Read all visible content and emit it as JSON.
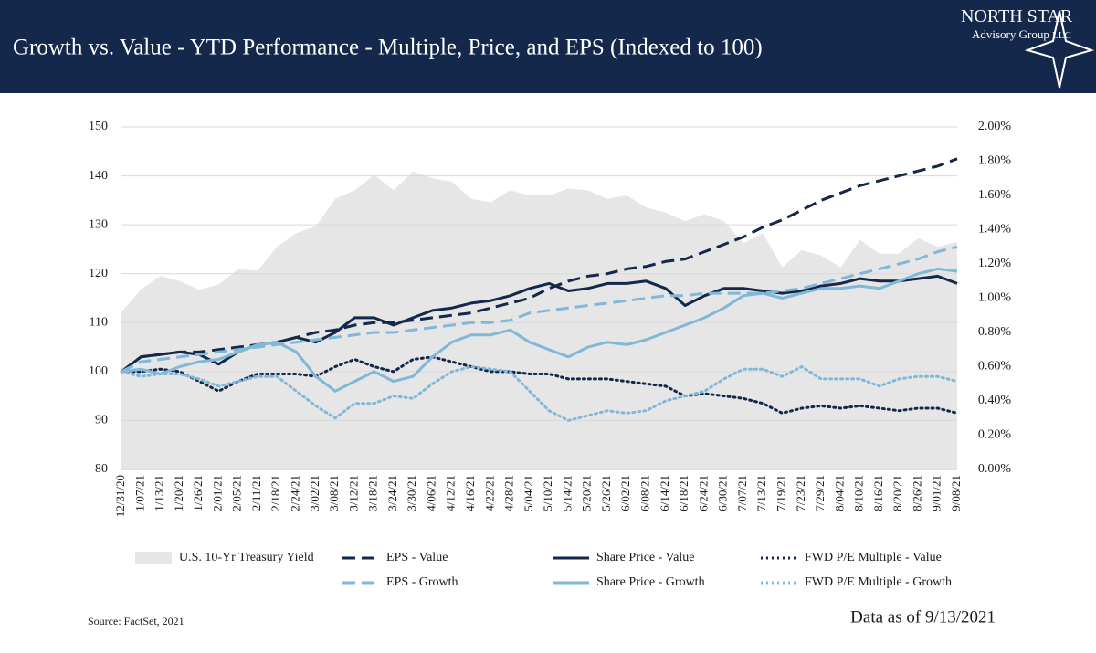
{
  "logo": {
    "name": "NORTH STAR",
    "line2": "Advisory Group",
    "line3": "LLC"
  },
  "chart_data": {
    "type": "line",
    "title": "Growth vs. Value - YTD Performance - Multiple, Price, and EPS (Indexed to 100)",
    "source": "Source: FactSet, 2021",
    "note": "Data as of 9/13/2021",
    "categories": [
      "12/31/20",
      "1/07/21",
      "1/13/21",
      "1/20/21",
      "1/26/21",
      "2/01/21",
      "2/05/21",
      "2/11/21",
      "2/18/21",
      "2/24/21",
      "3/02/21",
      "3/08/21",
      "3/12/21",
      "3/18/21",
      "3/24/21",
      "3/30/21",
      "4/06/21",
      "4/12/21",
      "4/16/21",
      "4/22/21",
      "4/28/21",
      "5/04/21",
      "5/10/21",
      "5/14/21",
      "5/20/21",
      "5/26/21",
      "6/02/21",
      "6/08/21",
      "6/14/21",
      "6/18/21",
      "6/24/21",
      "6/30/21",
      "7/07/21",
      "7/13/21",
      "7/19/21",
      "7/23/21",
      "7/29/21",
      "8/04/21",
      "8/10/21",
      "8/16/21",
      "8/20/21",
      "8/26/21",
      "9/01/21",
      "9/08/21"
    ],
    "ylim": [
      80,
      150
    ],
    "yticks": [
      80,
      90,
      100,
      110,
      120,
      130,
      140,
      150
    ],
    "y2lim": [
      0,
      2
    ],
    "y2ticks": [
      {
        "value": 0,
        "label": "0.00%"
      },
      {
        "value": 0.2,
        "label": "0.20%"
      },
      {
        "value": 0.4,
        "label": "0.40%"
      },
      {
        "value": 0.6,
        "label": "0.60%"
      },
      {
        "value": 0.8,
        "label": "0.80%"
      },
      {
        "value": 1,
        "label": "1.00%"
      },
      {
        "value": 1.2,
        "label": "1.20%"
      },
      {
        "value": 1.4,
        "label": "1.40%"
      },
      {
        "value": 1.6,
        "label": "1.60%"
      },
      {
        "value": 1.8,
        "label": "1.80%"
      },
      {
        "value": 2,
        "label": "2.00%"
      }
    ],
    "grid": true,
    "series": [
      {
        "name": "U.S. 10-Yr Treasury Yield",
        "color": "#e6e6e6",
        "style": "area",
        "axis": "y2",
        "values": [
          0.92,
          1.05,
          1.13,
          1.1,
          1.05,
          1.08,
          1.17,
          1.16,
          1.3,
          1.38,
          1.42,
          1.58,
          1.63,
          1.72,
          1.63,
          1.74,
          1.7,
          1.68,
          1.58,
          1.56,
          1.63,
          1.6,
          1.6,
          1.64,
          1.63,
          1.58,
          1.6,
          1.53,
          1.5,
          1.45,
          1.49,
          1.45,
          1.32,
          1.38,
          1.18,
          1.28,
          1.25,
          1.18,
          1.34,
          1.26,
          1.26,
          1.35,
          1.3,
          1.33
        ]
      },
      {
        "name": "EPS - Value",
        "color": "#14284b",
        "style": "dashed",
        "values": [
          100,
          103,
          103.5,
          104,
          104,
          104.5,
          105,
          105.5,
          106,
          107,
          108,
          108.5,
          109.5,
          110,
          110,
          110.5,
          111,
          111.5,
          112,
          113,
          114,
          115,
          117,
          118.5,
          119.5,
          120,
          121,
          121.5,
          122.5,
          123,
          124.5,
          126,
          127.5,
          129.5,
          131,
          133,
          135,
          136.5,
          138,
          139,
          140,
          141,
          142,
          143.5
        ]
      },
      {
        "name": "Share Price - Value",
        "color": "#14284b",
        "style": "solid",
        "values": [
          100,
          103,
          103.5,
          104,
          103.5,
          101.5,
          104,
          105.5,
          106,
          107,
          106,
          108,
          111,
          111,
          109.5,
          111,
          112.5,
          113,
          114,
          114.5,
          115.5,
          117,
          118,
          116.5,
          117,
          118,
          118,
          118.5,
          117,
          113.5,
          115.5,
          117,
          117,
          116.5,
          116,
          116.5,
          117.5,
          118,
          119,
          118.5,
          118.5,
          119,
          119.5,
          118
        ]
      },
      {
        "name": "FWD P/E Multiple - Value",
        "color": "#14284b",
        "style": "dotted",
        "values": [
          100,
          100,
          100.5,
          100,
          98,
          96,
          98,
          99.5,
          99.5,
          99.5,
          99,
          101,
          102.5,
          101,
          100,
          102.5,
          103,
          102,
          101,
          100,
          100,
          99.5,
          99.5,
          98.5,
          98.5,
          98.5,
          98,
          97.5,
          97,
          95,
          95.5,
          95,
          94.5,
          93.5,
          91.5,
          92.5,
          93,
          92.5,
          93,
          92.5,
          92,
          92.5,
          92.5,
          91.5
        ]
      },
      {
        "name": "EPS - Growth",
        "color": "#7fb8d8",
        "style": "dashed",
        "values": [
          100,
          102,
          102.5,
          103,
          103.5,
          104,
          104.5,
          105,
          105.5,
          106,
          106.5,
          107,
          107.5,
          108,
          108,
          108.5,
          109,
          109.5,
          110,
          110,
          110.5,
          112,
          112.5,
          113,
          113.5,
          114,
          114.5,
          115,
          115.5,
          115.5,
          116,
          116,
          116,
          116,
          116.5,
          117,
          118,
          119,
          120,
          121,
          122,
          123,
          124.5,
          125.5
        ]
      },
      {
        "name": "Share Price - Growth",
        "color": "#7fb8d8",
        "style": "solid",
        "values": [
          100,
          100.5,
          99.5,
          101,
          102,
          102.5,
          104,
          105.5,
          106,
          104,
          99,
          96,
          98,
          100,
          98,
          99,
          103,
          106,
          107.5,
          107.5,
          108.5,
          106,
          104.5,
          103,
          105,
          106,
          105.5,
          106.5,
          108,
          109.5,
          111,
          113,
          115.5,
          116,
          115,
          116,
          117,
          117,
          117.5,
          117,
          118.5,
          120,
          121,
          120.5
        ]
      },
      {
        "name": "FWD P/E Multiple - Growth",
        "color": "#7fb8d8",
        "style": "dotted",
        "values": [
          100,
          99,
          99.5,
          99.5,
          98.5,
          97,
          98,
          99,
          99,
          96,
          93,
          90.5,
          93.5,
          93.5,
          95,
          94.5,
          97.5,
          100,
          101,
          100.5,
          100,
          96,
          92,
          90,
          91,
          92,
          91.5,
          92,
          94,
          95,
          96,
          98.5,
          100.5,
          100.5,
          99,
          101,
          98.5,
          98.5,
          98.5,
          97,
          98.5,
          99,
          99,
          98
        ]
      }
    ]
  }
}
